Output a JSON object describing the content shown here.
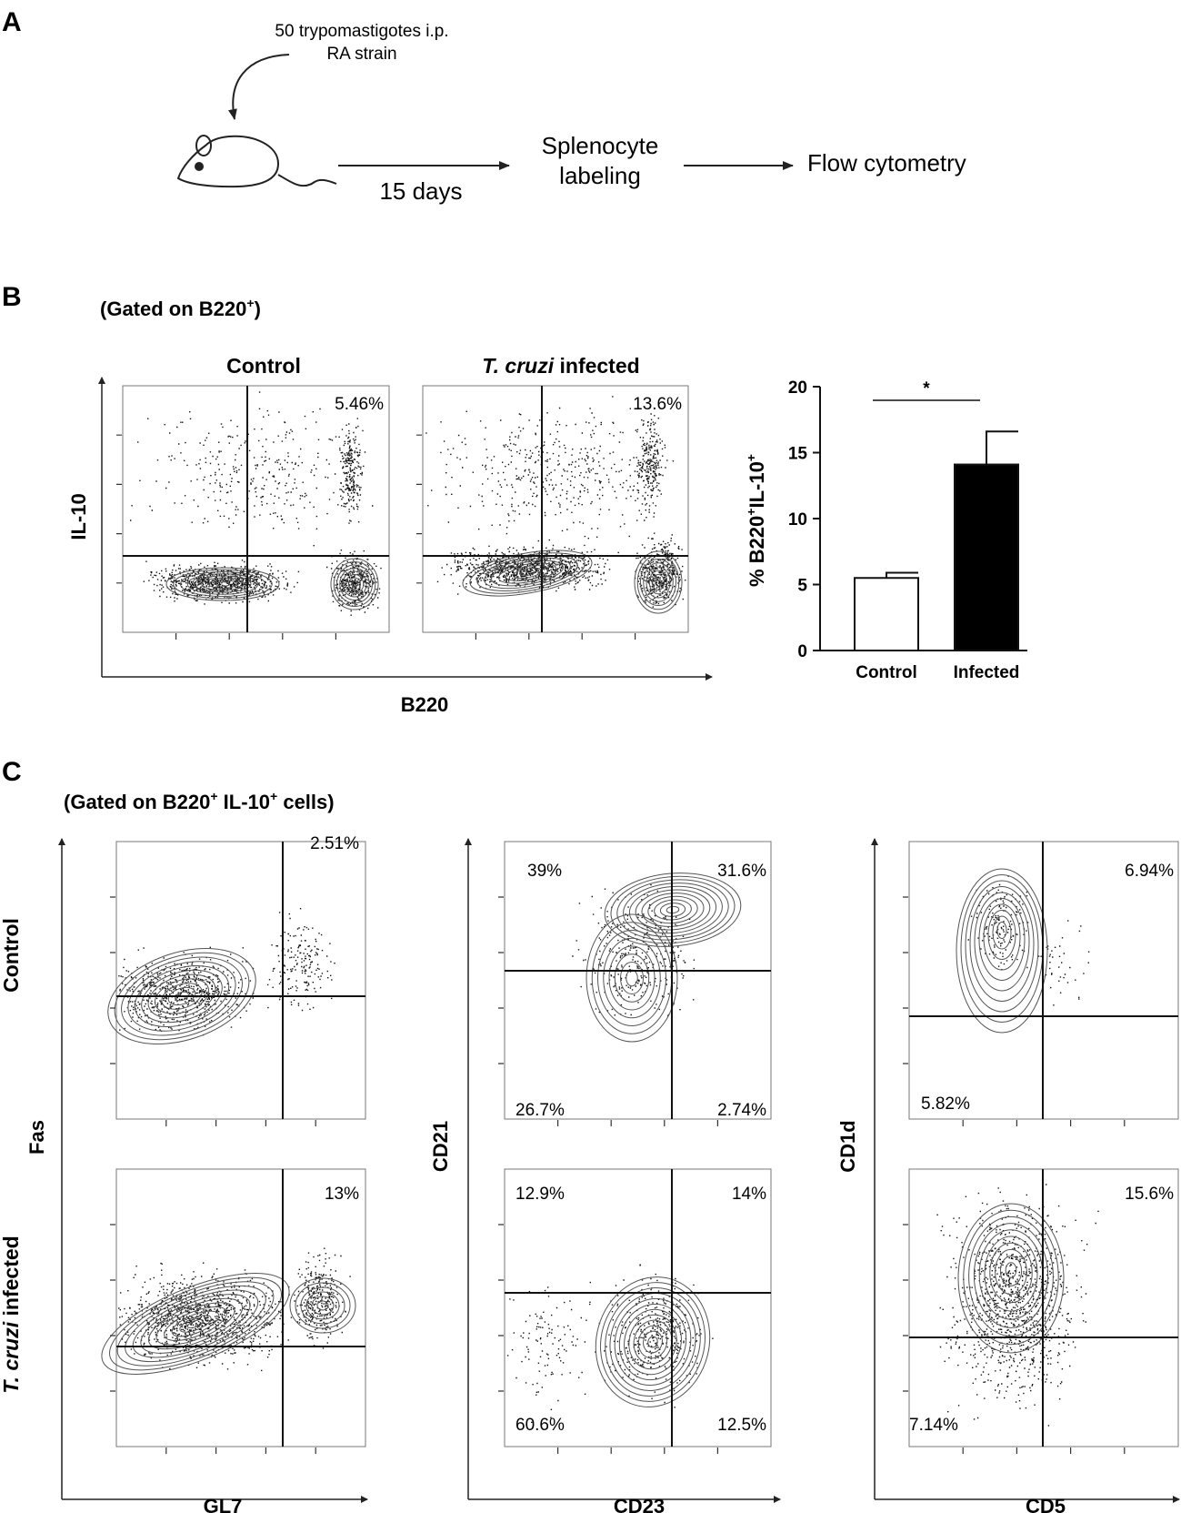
{
  "panel_a": {
    "letter": "A",
    "injection_line1": "50 trypomastigotes i.p.",
    "injection_line2": "RA strain",
    "duration": "15 days",
    "step2_line1": "Splenocyte",
    "step2_line2": "labeling",
    "step3": "Flow cytometry"
  },
  "panel_b": {
    "letter": "B",
    "gate": "(Gated on B220",
    "gate_sup": "+",
    "gate_close": ")",
    "col_control": "Control",
    "col_infected_italic": "T. cruzi",
    "col_infected_rest": " infected",
    "y_axis": "IL-10",
    "x_axis": "B220",
    "pct_control": "5.46%",
    "pct_infected": "13.6%"
  },
  "chart_data": {
    "type": "bar",
    "categories": [
      "Control",
      "Infected"
    ],
    "values": [
      5.5,
      14.1
    ],
    "errors": [
      0.4,
      2.5
    ],
    "colors": [
      "#ffffff",
      "#000000"
    ],
    "ylabel_parts": [
      "% B220",
      "+",
      "IL-10",
      "+"
    ],
    "ylim": [
      0,
      20
    ],
    "yticks": [
      "0",
      "5",
      "10",
      "15",
      "20"
    ],
    "significance": "*"
  },
  "panel_c": {
    "letter": "C",
    "gate": "(Gated on B220",
    "gate_sup1": "+",
    "gate_mid": " IL-10",
    "gate_sup2": "+",
    "gate_close": " cells)",
    "row_control": "Control",
    "row_infected_italic": "T. cruzi",
    "row_infected_rest": " infected",
    "plots": {
      "fas_gl7": {
        "y_axis": "Fas",
        "x_axis": "GL7",
        "control_pct": "2.51%",
        "infected_pct": "13%"
      },
      "cd21_cd23": {
        "y_axis": "CD21",
        "x_axis": "CD23",
        "control": {
          "ul": "39%",
          "ur": "31.6%",
          "ll": "26.7%",
          "lr": "2.74%"
        },
        "infected": {
          "ul": "12.9%",
          "ur": "14%",
          "ll": "60.6%",
          "lr": "12.5%"
        }
      },
      "cd1d_cd5": {
        "y_axis": "CD1d",
        "x_axis": "CD5",
        "control": {
          "ur": "6.94%",
          "ll": "5.82%"
        },
        "infected": {
          "ur": "15.6%",
          "ll": "7.14%"
        }
      }
    }
  }
}
